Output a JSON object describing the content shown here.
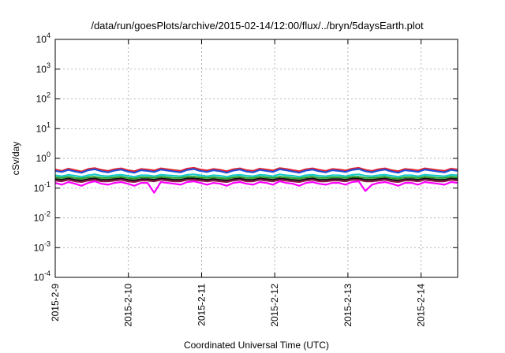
{
  "chart_data": {
    "type": "line",
    "title": "/data/run/goesPlots/archive/2015-02-14/12:00/flux/../bryn/5daysEarth.plot",
    "xlabel": "Coordinated Universal Time (UTC)",
    "ylabel": "cSv/day",
    "yscale": "log",
    "ylim": [
      0.0001,
      10000
    ],
    "xlim": [
      "2015-02-09 00:00",
      "2015-02-14 12:00"
    ],
    "grid": true,
    "legend": "none",
    "y_ticks": [
      {
        "value": 0.0001,
        "base": "10",
        "exp": "-4"
      },
      {
        "value": 0.001,
        "base": "10",
        "exp": "-3"
      },
      {
        "value": 0.01,
        "base": "10",
        "exp": "-2"
      },
      {
        "value": 0.1,
        "base": "10",
        "exp": "-1"
      },
      {
        "value": 1,
        "base": "10",
        "exp": "0"
      },
      {
        "value": 10,
        "base": "10",
        "exp": "1"
      },
      {
        "value": 100,
        "base": "10",
        "exp": "2"
      },
      {
        "value": 1000,
        "base": "10",
        "exp": "3"
      },
      {
        "value": 10000,
        "base": "10",
        "exp": "4"
      }
    ],
    "x_ticks": [
      {
        "value": "2015-02-09",
        "label": "2015-2-9"
      },
      {
        "value": "2015-02-10",
        "label": "2015-2-10"
      },
      {
        "value": "2015-02-11",
        "label": "2015-2-11"
      },
      {
        "value": "2015-02-12",
        "label": "2015-2-12"
      },
      {
        "value": "2015-02-13",
        "label": "2015-2-13"
      },
      {
        "value": "2015-02-14",
        "label": "2015-2-14"
      }
    ],
    "series": [
      {
        "color": "#e8202a",
        "y": [
          0.42,
          0.38,
          0.45,
          0.4,
          0.36,
          0.44,
          0.47,
          0.41,
          0.38,
          0.43,
          0.46,
          0.4,
          0.37,
          0.44,
          0.42,
          0.39,
          0.46,
          0.43,
          0.4,
          0.38,
          0.45,
          0.48,
          0.42,
          0.39,
          0.44,
          0.41,
          0.37,
          0.43,
          0.46,
          0.4,
          0.38,
          0.45,
          0.42,
          0.39,
          0.47,
          0.44,
          0.4,
          0.37,
          0.43,
          0.46,
          0.41,
          0.38,
          0.44,
          0.42,
          0.39,
          0.45,
          0.48,
          0.41,
          0.38,
          0.43,
          0.46,
          0.4,
          0.37,
          0.44,
          0.42,
          0.39,
          0.46,
          0.43,
          0.4,
          0.38,
          0.45,
          0.42
        ]
      },
      {
        "color": "#1e4fd8",
        "y": [
          0.38,
          0.35,
          0.41,
          0.36,
          0.33,
          0.4,
          0.43,
          0.37,
          0.34,
          0.39,
          0.42,
          0.36,
          0.33,
          0.4,
          0.38,
          0.35,
          0.42,
          0.39,
          0.36,
          0.34,
          0.41,
          0.44,
          0.38,
          0.35,
          0.4,
          0.37,
          0.33,
          0.39,
          0.42,
          0.36,
          0.34,
          0.41,
          0.38,
          0.35,
          0.43,
          0.4,
          0.36,
          0.33,
          0.39,
          0.42,
          0.37,
          0.34,
          0.4,
          0.38,
          0.35,
          0.41,
          0.44,
          0.37,
          0.34,
          0.39,
          0.42,
          0.36,
          0.33,
          0.4,
          0.38,
          0.35,
          0.42,
          0.39,
          0.36,
          0.34,
          0.41,
          0.38
        ]
      },
      {
        "color": "#17c7c7",
        "y": [
          0.27,
          0.25,
          0.28,
          0.26,
          0.24,
          0.27,
          0.29,
          0.26,
          0.25,
          0.27,
          0.28,
          0.26,
          0.24,
          0.27,
          0.27,
          0.25,
          0.28,
          0.27,
          0.26,
          0.25,
          0.28,
          0.29,
          0.27,
          0.25,
          0.27,
          0.26,
          0.24,
          0.27,
          0.28,
          0.26,
          0.25,
          0.28,
          0.27,
          0.25,
          0.29,
          0.27,
          0.26,
          0.24,
          0.27,
          0.28,
          0.26,
          0.25,
          0.27,
          0.27,
          0.25,
          0.28,
          0.29,
          0.26,
          0.25,
          0.27,
          0.28,
          0.26,
          0.24,
          0.27,
          0.27,
          0.25,
          0.28,
          0.27,
          0.26,
          0.25,
          0.28,
          0.27
        ]
      },
      {
        "color": "#2ca02c",
        "y": [
          0.23,
          0.22,
          0.24,
          0.22,
          0.21,
          0.23,
          0.24,
          0.22,
          0.22,
          0.23,
          0.24,
          0.22,
          0.21,
          0.23,
          0.23,
          0.22,
          0.24,
          0.23,
          0.22,
          0.22,
          0.24,
          0.24,
          0.23,
          0.22,
          0.23,
          0.22,
          0.21,
          0.23,
          0.24,
          0.22,
          0.22,
          0.24,
          0.23,
          0.22,
          0.24,
          0.23,
          0.22,
          0.21,
          0.23,
          0.24,
          0.22,
          0.22,
          0.23,
          0.23,
          0.22,
          0.24,
          0.24,
          0.22,
          0.22,
          0.23,
          0.24,
          0.22,
          0.21,
          0.23,
          0.23,
          0.22,
          0.24,
          0.23,
          0.22,
          0.22,
          0.24,
          0.23
        ]
      },
      {
        "color": "#111111",
        "y": [
          0.2,
          0.19,
          0.21,
          0.19,
          0.18,
          0.2,
          0.21,
          0.19,
          0.19,
          0.2,
          0.21,
          0.19,
          0.18,
          0.2,
          0.2,
          0.19,
          0.21,
          0.2,
          0.19,
          0.19,
          0.21,
          0.21,
          0.2,
          0.19,
          0.2,
          0.19,
          0.18,
          0.2,
          0.21,
          0.19,
          0.19,
          0.21,
          0.2,
          0.19,
          0.21,
          0.2,
          0.19,
          0.18,
          0.2,
          0.21,
          0.19,
          0.19,
          0.2,
          0.2,
          0.19,
          0.21,
          0.21,
          0.19,
          0.19,
          0.2,
          0.21,
          0.19,
          0.18,
          0.2,
          0.2,
          0.19,
          0.21,
          0.2,
          0.19,
          0.19,
          0.21,
          0.2
        ]
      },
      {
        "color": "#8b1a4a",
        "y": [
          0.18,
          0.17,
          0.19,
          0.17,
          0.16,
          0.18,
          0.19,
          0.17,
          0.17,
          0.18,
          0.19,
          0.17,
          0.16,
          0.18,
          0.18,
          0.17,
          0.19,
          0.18,
          0.17,
          0.17,
          0.19,
          0.19,
          0.18,
          0.17,
          0.18,
          0.17,
          0.16,
          0.18,
          0.19,
          0.17,
          0.17,
          0.19,
          0.18,
          0.17,
          0.19,
          0.18,
          0.17,
          0.16,
          0.18,
          0.19,
          0.17,
          0.17,
          0.18,
          0.18,
          0.17,
          0.19,
          0.19,
          0.17,
          0.17,
          0.18,
          0.19,
          0.17,
          0.16,
          0.18,
          0.18,
          0.17,
          0.19,
          0.18,
          0.17,
          0.17,
          0.19,
          0.18
        ]
      },
      {
        "color": "#ff00ff",
        "y": [
          0.15,
          0.13,
          0.16,
          0.14,
          0.12,
          0.15,
          0.17,
          0.14,
          0.13,
          0.15,
          0.16,
          0.14,
          0.12,
          0.15,
          0.15,
          0.07,
          0.16,
          0.15,
          0.14,
          0.13,
          0.16,
          0.17,
          0.15,
          0.13,
          0.15,
          0.14,
          0.12,
          0.15,
          0.16,
          0.14,
          0.13,
          0.16,
          0.15,
          0.13,
          0.17,
          0.15,
          0.14,
          0.12,
          0.15,
          0.16,
          0.14,
          0.13,
          0.15,
          0.15,
          0.13,
          0.16,
          0.17,
          0.08,
          0.13,
          0.15,
          0.16,
          0.14,
          0.12,
          0.15,
          0.15,
          0.13,
          0.16,
          0.15,
          0.14,
          0.13,
          0.16,
          0.15
        ]
      }
    ]
  }
}
